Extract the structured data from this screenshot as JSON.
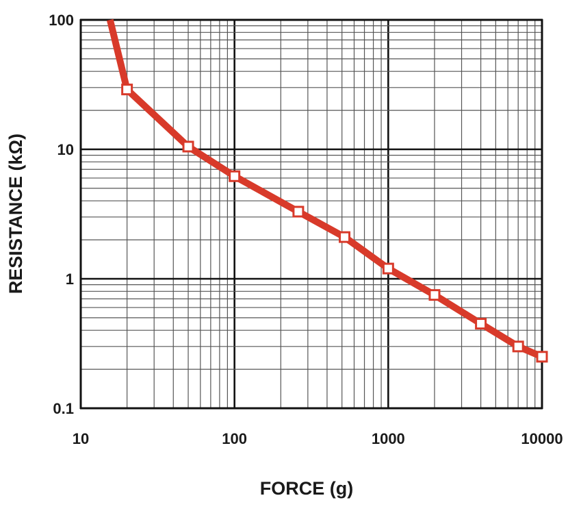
{
  "chart_data": {
    "type": "line",
    "xlabel": "FORCE (g)",
    "ylabel": "RESISTANCE (kΩ)",
    "x_scale": "log",
    "y_scale": "log",
    "xlim": [
      10,
      10000
    ],
    "ylim": [
      0.1,
      100
    ],
    "x_ticks": [
      "10",
      "100",
      "1000",
      "10000"
    ],
    "y_ticks": [
      "100",
      "10",
      "1",
      "0.1"
    ],
    "grid": true,
    "line_color": "#d83a2a",
    "marker_fill": "#ffffff",
    "grid_color": "#555555",
    "curve_start": {
      "x": 15.5,
      "y": 100
    },
    "series": [
      {
        "x": [
          20,
          50,
          100,
          260,
          520,
          1000,
          2000,
          4000,
          7000,
          10000
        ],
        "y": [
          29,
          10.5,
          6.2,
          3.3,
          2.1,
          1.2,
          0.75,
          0.45,
          0.3,
          0.25
        ]
      }
    ]
  }
}
